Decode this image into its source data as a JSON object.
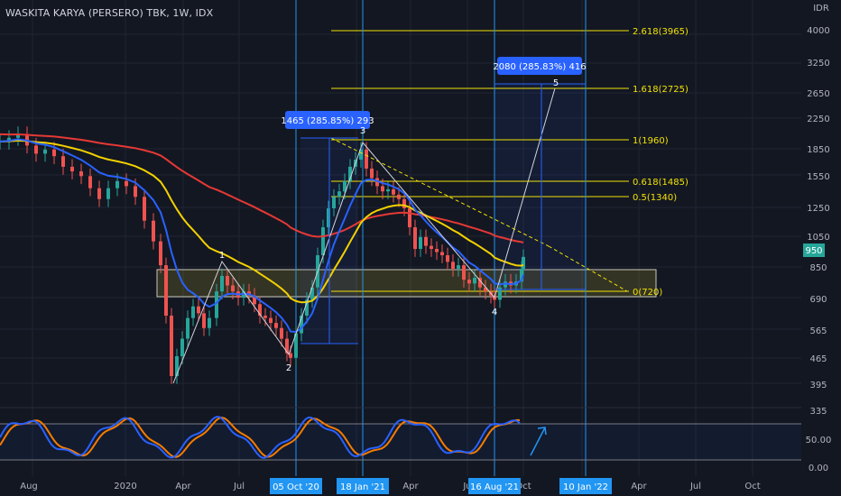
{
  "header": {
    "symbol_title": "WASKITA KARYA (PERSERO) TBK, 1W, IDX",
    "currency": "IDR"
  },
  "price_axis": {
    "ticks": [
      "4000",
      "3250",
      "2650",
      "2250",
      "1850",
      "1550",
      "1250",
      "1050",
      "850",
      "690",
      "565",
      "465",
      "395",
      "335"
    ],
    "last_price": "950"
  },
  "osc_axis": {
    "ticks": [
      "50.00",
      "0.00"
    ]
  },
  "time_axis": {
    "labels": [
      "Aug",
      "2020",
      "Apr",
      "Jul",
      "Apr",
      "Ju",
      "Oct",
      "Apr",
      "Jul",
      "Oct"
    ],
    "highlight_labels": [
      "05 Oct '20",
      "18 Jan '21",
      "16 Aug '21",
      "10 Jan '22"
    ]
  },
  "fib_levels": [
    {
      "label": "2.618(3965)",
      "value": 3965
    },
    {
      "label": "1.618(2725)",
      "value": 2725
    },
    {
      "label": "1(1960)",
      "value": 1960
    },
    {
      "label": "0.618(1485)",
      "value": 1485
    },
    {
      "label": "0.5(1340)",
      "value": 1340
    },
    {
      "label": "0(720)",
      "value": 720
    }
  ],
  "measure_labels": [
    {
      "text": "1465 (285.85%) 293"
    },
    {
      "text": "2080 (285.83%) 416"
    }
  ],
  "wave_labels": [
    "1",
    "2",
    "3",
    "4",
    "5"
  ],
  "colors": {
    "background": "#131722",
    "grid": "#1f2433",
    "up": "#26a69a",
    "down": "#ef5350",
    "ema_fast": "#2962ff",
    "ema_mid": "#f2d100",
    "ema_slow": "#e53935",
    "fib": "#f2e205",
    "vline": "#2196f3",
    "stoch_k": "#2962ff",
    "stoch_d": "#f57c00",
    "measure": "#2962ff"
  },
  "chart_data": {
    "type": "candlestick",
    "title": "WASKITA KARYA (PERSERO) TBK, 1W, IDX",
    "yscale": "log",
    "ylim": [
      335,
      4700
    ],
    "x": [
      "2019-08",
      "2019-10",
      "2020-01",
      "2020-04",
      "2020-07",
      "2020-10",
      "2021-01",
      "2021-04",
      "2021-07",
      "2021-08",
      "2021-10"
    ],
    "close_approx": [
      2050,
      1700,
      1380,
      440,
      760,
      560,
      1850,
      1150,
      850,
      720,
      950
    ],
    "last_close": 950,
    "key_points": [
      {
        "label": "1",
        "price": 850
      },
      {
        "label": "2",
        "price": 495
      },
      {
        "label": "3",
        "price": 1960
      },
      {
        "label": "4",
        "price": 720
      },
      {
        "label": "5",
        "price": 2800
      }
    ]
  }
}
